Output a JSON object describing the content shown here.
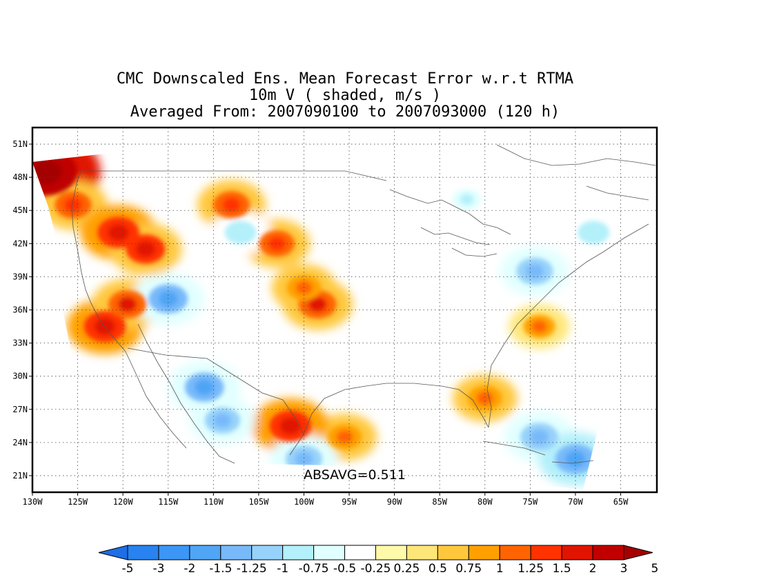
{
  "title": {
    "line1": "CMC Downscaled Ens. Mean Forecast Error w.r.t RTMA",
    "line2": "10m V ( shaded, m/s )",
    "line3": "Averaged From: 2007090100 to 2007093000 (120 h)"
  },
  "map": {
    "lon_range": [
      -130,
      -61
    ],
    "lat_range": [
      19.5,
      52.5
    ],
    "lon_ticks": [
      "130W",
      "125W",
      "120W",
      "115W",
      "110W",
      "105W",
      "100W",
      "95W",
      "90W",
      "85W",
      "80W",
      "75W",
      "70W",
      "65W"
    ],
    "lat_ticks": [
      "51N",
      "48N",
      "45N",
      "42N",
      "39N",
      "36N",
      "33N",
      "30N",
      "27N",
      "24N",
      "21N"
    ],
    "grid": "dotted",
    "absavg": "ABSAVG=0.511"
  },
  "colorbar": {
    "labels": [
      "-5",
      "-3",
      "-2",
      "-1.5",
      "-1.25",
      "-1",
      "-0.75",
      "-0.5",
      "-0.25",
      "0.25",
      "0.5",
      "0.75",
      "1",
      "1.25",
      "1.5",
      "2",
      "3",
      "5"
    ],
    "colors": [
      "#1e6ee6",
      "#2882f0",
      "#3c96f5",
      "#50a5f5",
      "#78b9fa",
      "#96d2fa",
      "#b4f0fa",
      "#e1ffff",
      "#ffffff",
      "#fffaaa",
      "#ffe678",
      "#ffc83c",
      "#ffa000",
      "#ff6400",
      "#ff3200",
      "#e11400",
      "#c00000",
      "#a50000"
    ]
  },
  "chart_data": {
    "type": "heatmap",
    "variable": "10m V ( shaded, m/s )",
    "absavg": 0.511,
    "lon_range": [
      -130,
      -61
    ],
    "lat_range": [
      19.5,
      52.5
    ],
    "levels": [
      -5,
      -3,
      -2,
      -1.5,
      -1.25,
      -1,
      -0.75,
      -0.5,
      -0.25,
      0.25,
      0.5,
      0.75,
      1,
      1.25,
      1.5,
      2,
      3,
      5
    ],
    "regions": [
      {
        "lon": -128.5,
        "lat": 48.5,
        "value": 3.5
      },
      {
        "lon": -125.5,
        "lat": 45.5,
        "value": 1.4
      },
      {
        "lon": -120.5,
        "lat": 43.0,
        "value": 1.8
      },
      {
        "lon": -117.5,
        "lat": 41.5,
        "value": 1.6
      },
      {
        "lon": -122.0,
        "lat": 34.5,
        "value": 1.8
      },
      {
        "lon": -119.5,
        "lat": 36.5,
        "value": 1.5
      },
      {
        "lon": -108.0,
        "lat": 45.5,
        "value": 1.4
      },
      {
        "lon": -103.0,
        "lat": 42.0,
        "value": 1.3
      },
      {
        "lon": -98.5,
        "lat": 36.5,
        "value": 1.5
      },
      {
        "lon": -100.0,
        "lat": 38.0,
        "value": 1.2
      },
      {
        "lon": -95.5,
        "lat": 24.5,
        "value": 1.2
      },
      {
        "lon": -101.5,
        "lat": 25.5,
        "value": 1.8
      },
      {
        "lon": -74.0,
        "lat": 34.5,
        "value": 1.0
      },
      {
        "lon": -80.0,
        "lat": 28.0,
        "value": 1.2
      },
      {
        "lon": -115.0,
        "lat": 37.0,
        "value": -1.6
      },
      {
        "lon": -111.0,
        "lat": 29.0,
        "value": -1.6
      },
      {
        "lon": -109.0,
        "lat": 26.0,
        "value": -1.3
      },
      {
        "lon": -100.0,
        "lat": 22.5,
        "value": -1.4
      },
      {
        "lon": -74.0,
        "lat": 24.5,
        "value": -1.5
      },
      {
        "lon": -70.0,
        "lat": 22.5,
        "value": -1.7
      },
      {
        "lon": -74.5,
        "lat": 39.5,
        "value": -1.4
      },
      {
        "lon": -68.0,
        "lat": 43.0,
        "value": -1.0
      },
      {
        "lon": -82.0,
        "lat": 46.0,
        "value": -0.8
      },
      {
        "lon": -107.0,
        "lat": 43.0,
        "value": -1.0
      }
    ]
  }
}
